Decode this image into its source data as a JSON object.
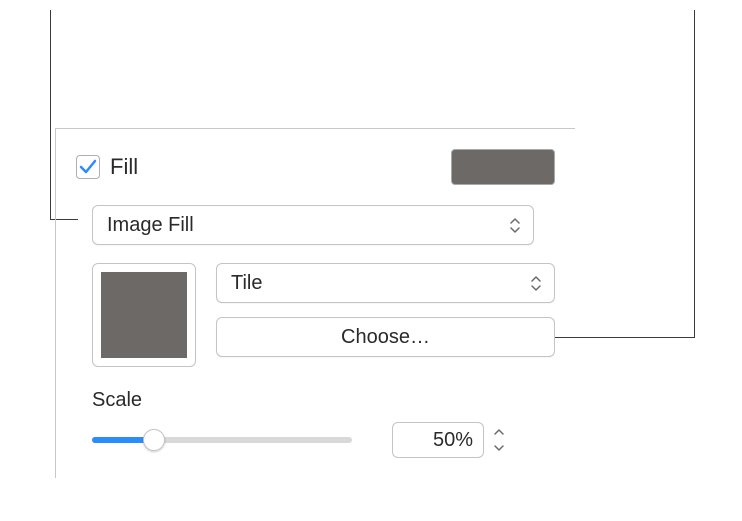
{
  "fill": {
    "checkbox_checked": true,
    "label": "Fill",
    "swatch_color": "#6d6966"
  },
  "fill_type_popup": {
    "selected": "Image Fill"
  },
  "image_well": {
    "thumbnail_color": "#6d6966"
  },
  "display_mode_popup": {
    "selected": "Tile"
  },
  "choose_button": {
    "label": "Choose…"
  },
  "scale": {
    "label": "Scale",
    "value_text": "50%",
    "slider_percent": 24
  },
  "styling": {
    "panel_border": "#c8c8c8",
    "control_border": "#c4c4c4",
    "text_color": "#2a2a2a",
    "accent": "#2b8cff",
    "track_bg": "#d9d9d9",
    "background": "#ffffff",
    "font_size_base": 20,
    "border_radius": 6
  }
}
